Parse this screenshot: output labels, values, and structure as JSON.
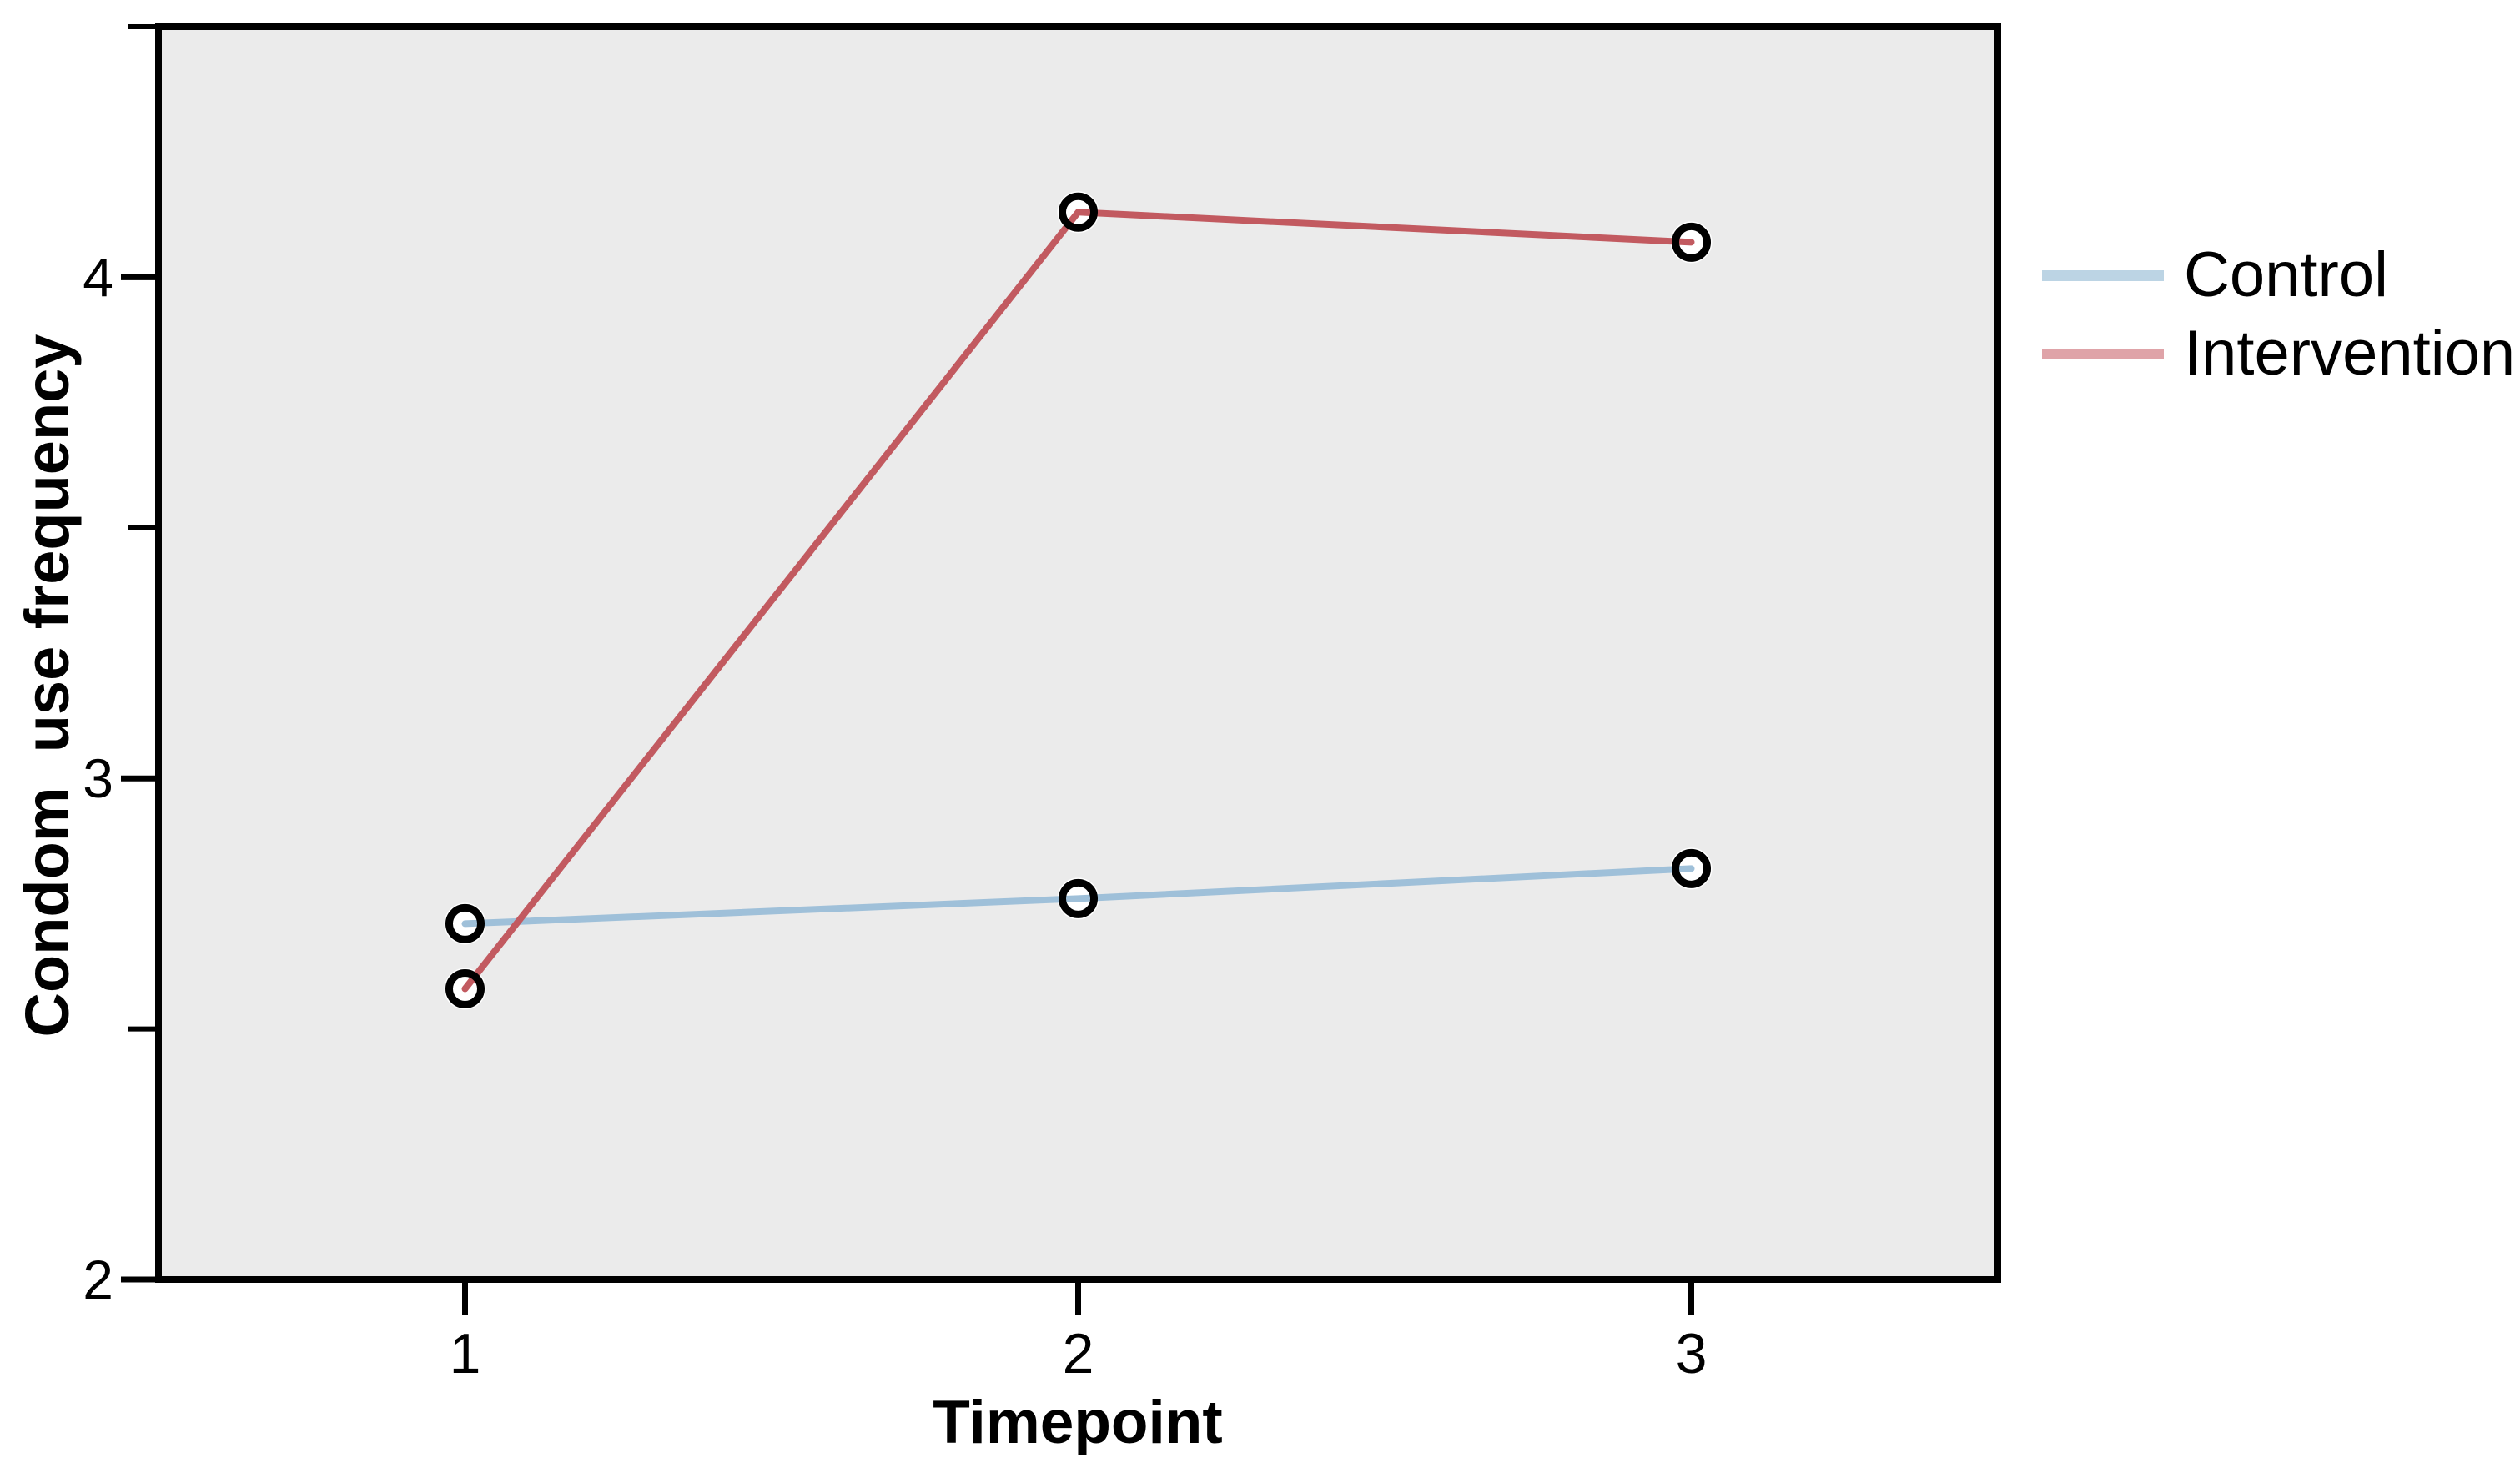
{
  "figure": {
    "background_color": "#ffffff",
    "plot_background_color": "#ebebeb",
    "frame_color": "#000000",
    "text_color": "#000000"
  },
  "chart_data": {
    "type": "line",
    "title": "",
    "xlabel": "Timepoint",
    "ylabel": "Condom  use frequency",
    "categories": [
      "1",
      "2",
      "3"
    ],
    "series": [
      {
        "name": "Control",
        "values": [
          2.71,
          2.76,
          2.82
        ],
        "color": "#9fc0d9",
        "swatch_color": "#bcd4e4",
        "marker": "open-circle"
      },
      {
        "name": "Intervention",
        "values": [
          2.58,
          4.13,
          4.07
        ],
        "color": "#c25a60",
        "swatch_color": "#dfa3a8",
        "marker": "open-circle"
      }
    ],
    "ylim": [
      2,
      4.5
    ],
    "yticks_major": [
      2,
      3,
      4
    ],
    "ytick_labels": [
      "2",
      "3",
      "4"
    ],
    "yticks_minor": [
      2.5,
      3.5,
      4.5
    ],
    "xtick_labels": [
      "1",
      "2",
      "3"
    ],
    "grid": false,
    "legend_position": "right-top",
    "marker_style": "open-black-circle-white-halo"
  }
}
